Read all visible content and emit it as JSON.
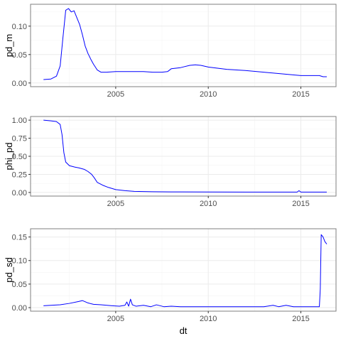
{
  "figure": {
    "line_color": "#0000ff",
    "panel_border_color": "#7f7f7f",
    "gridline_color": "#ebebeb"
  },
  "chart_data": [
    {
      "type": "line",
      "ylabel": "pd_m",
      "xlabel": "",
      "grid": true,
      "xlim": [
        2000.4,
        2016.9
      ],
      "ylim": [
        -0.0065,
        0.1385
      ],
      "x_ticks": [
        2005,
        2010,
        2015
      ],
      "x_tick_labels": [
        "2005",
        "2010",
        "2015"
      ],
      "y_ticks": [
        0.0,
        0.05,
        0.1
      ],
      "y_tick_labels": [
        "0.00",
        "0.05",
        "0.10"
      ],
      "series": [
        {
          "x": [
            2001.1,
            2001.5,
            2001.8,
            2002.0,
            2002.15,
            2002.3,
            2002.45,
            2002.6,
            2002.75,
            2002.9,
            2003.05,
            2003.2,
            2003.35,
            2003.5,
            2003.65,
            2003.8,
            2004.0,
            2004.2,
            2004.5,
            2005.0,
            2005.5,
            2006.0,
            2006.5,
            2007.0,
            2007.5,
            2007.8,
            2008.0,
            2008.5,
            2009.0,
            2009.3,
            2009.6,
            2010.0,
            2010.5,
            2011.0,
            2012.0,
            2013.0,
            2014.0,
            2015.0,
            2015.5,
            2016.0,
            2016.2,
            2016.4
          ],
          "y": [
            0.006,
            0.007,
            0.012,
            0.03,
            0.08,
            0.128,
            0.131,
            0.125,
            0.127,
            0.115,
            0.103,
            0.085,
            0.065,
            0.052,
            0.042,
            0.033,
            0.023,
            0.019,
            0.019,
            0.02,
            0.02,
            0.02,
            0.02,
            0.019,
            0.019,
            0.02,
            0.025,
            0.027,
            0.031,
            0.032,
            0.031,
            0.028,
            0.026,
            0.024,
            0.022,
            0.019,
            0.016,
            0.013,
            0.013,
            0.013,
            0.011,
            0.011
          ]
        }
      ]
    },
    {
      "type": "line",
      "ylabel": "phi_pd",
      "xlabel": "",
      "grid": true,
      "xlim": [
        2000.4,
        2016.9
      ],
      "ylim": [
        -0.05,
        1.05
      ],
      "x_ticks": [
        2005,
        2010,
        2015
      ],
      "x_tick_labels": [
        "2005",
        "2010",
        "2015"
      ],
      "y_ticks": [
        0.0,
        0.25,
        0.5,
        0.75,
        1.0
      ],
      "y_tick_labels": [
        "0.00",
        "0.25",
        "0.50",
        "0.75",
        "1.00"
      ],
      "series": [
        {
          "x": [
            2001.1,
            2001.5,
            2001.8,
            2002.0,
            2002.1,
            2002.2,
            2002.3,
            2002.5,
            2002.8,
            2003.0,
            2003.3,
            2003.5,
            2003.7,
            2003.85,
            2004.0,
            2004.3,
            2004.6,
            2005.0,
            2005.5,
            2006.0,
            2007.0,
            2008.0,
            2010.0,
            2012.0,
            2014.0,
            2014.8,
            2014.9,
            2015.0,
            2015.5,
            2016.0,
            2016.4
          ],
          "y": [
            1.0,
            0.99,
            0.98,
            0.94,
            0.8,
            0.55,
            0.42,
            0.37,
            0.35,
            0.34,
            0.32,
            0.29,
            0.25,
            0.2,
            0.14,
            0.1,
            0.07,
            0.04,
            0.025,
            0.015,
            0.01,
            0.008,
            0.006,
            0.005,
            0.005,
            0.005,
            0.025,
            0.005,
            0.005,
            0.005,
            0.005
          ]
        }
      ]
    },
    {
      "type": "line",
      "ylabel": "pd_sd",
      "xlabel": "dt",
      "grid": true,
      "xlim": [
        2000.4,
        2016.9
      ],
      "ylim": [
        -0.0075,
        0.1675
      ],
      "x_ticks": [
        2005,
        2010,
        2015
      ],
      "x_tick_labels": [
        "2005",
        "2010",
        "2015"
      ],
      "y_ticks": [
        0.0,
        0.05,
        0.1,
        0.15
      ],
      "y_tick_labels": [
        "0.00",
        "0.05",
        "0.10",
        "0.15"
      ],
      "series": [
        {
          "x": [
            2001.1,
            2001.5,
            2002.0,
            2002.5,
            2003.0,
            2003.2,
            2003.5,
            2003.8,
            2004.2,
            2004.8,
            2005.2,
            2005.5,
            2005.6,
            2005.7,
            2005.8,
            2005.9,
            2006.1,
            2006.5,
            2006.9,
            2007.2,
            2007.6,
            2008.0,
            2008.5,
            2009.0,
            2010.0,
            2011.0,
            2012.0,
            2013.0,
            2013.5,
            2013.8,
            2014.2,
            2014.6,
            2015.0,
            2015.5,
            2016.0,
            2016.05,
            2016.1,
            2016.2,
            2016.3,
            2016.4
          ],
          "y": [
            0.004,
            0.005,
            0.006,
            0.009,
            0.013,
            0.015,
            0.01,
            0.007,
            0.006,
            0.004,
            0.003,
            0.005,
            0.012,
            0.003,
            0.018,
            0.006,
            0.003,
            0.005,
            0.002,
            0.006,
            0.002,
            0.003,
            0.002,
            0.002,
            0.002,
            0.002,
            0.002,
            0.002,
            0.005,
            0.002,
            0.005,
            0.002,
            0.002,
            0.002,
            0.002,
            0.04,
            0.155,
            0.15,
            0.14,
            0.135
          ]
        }
      ]
    }
  ]
}
